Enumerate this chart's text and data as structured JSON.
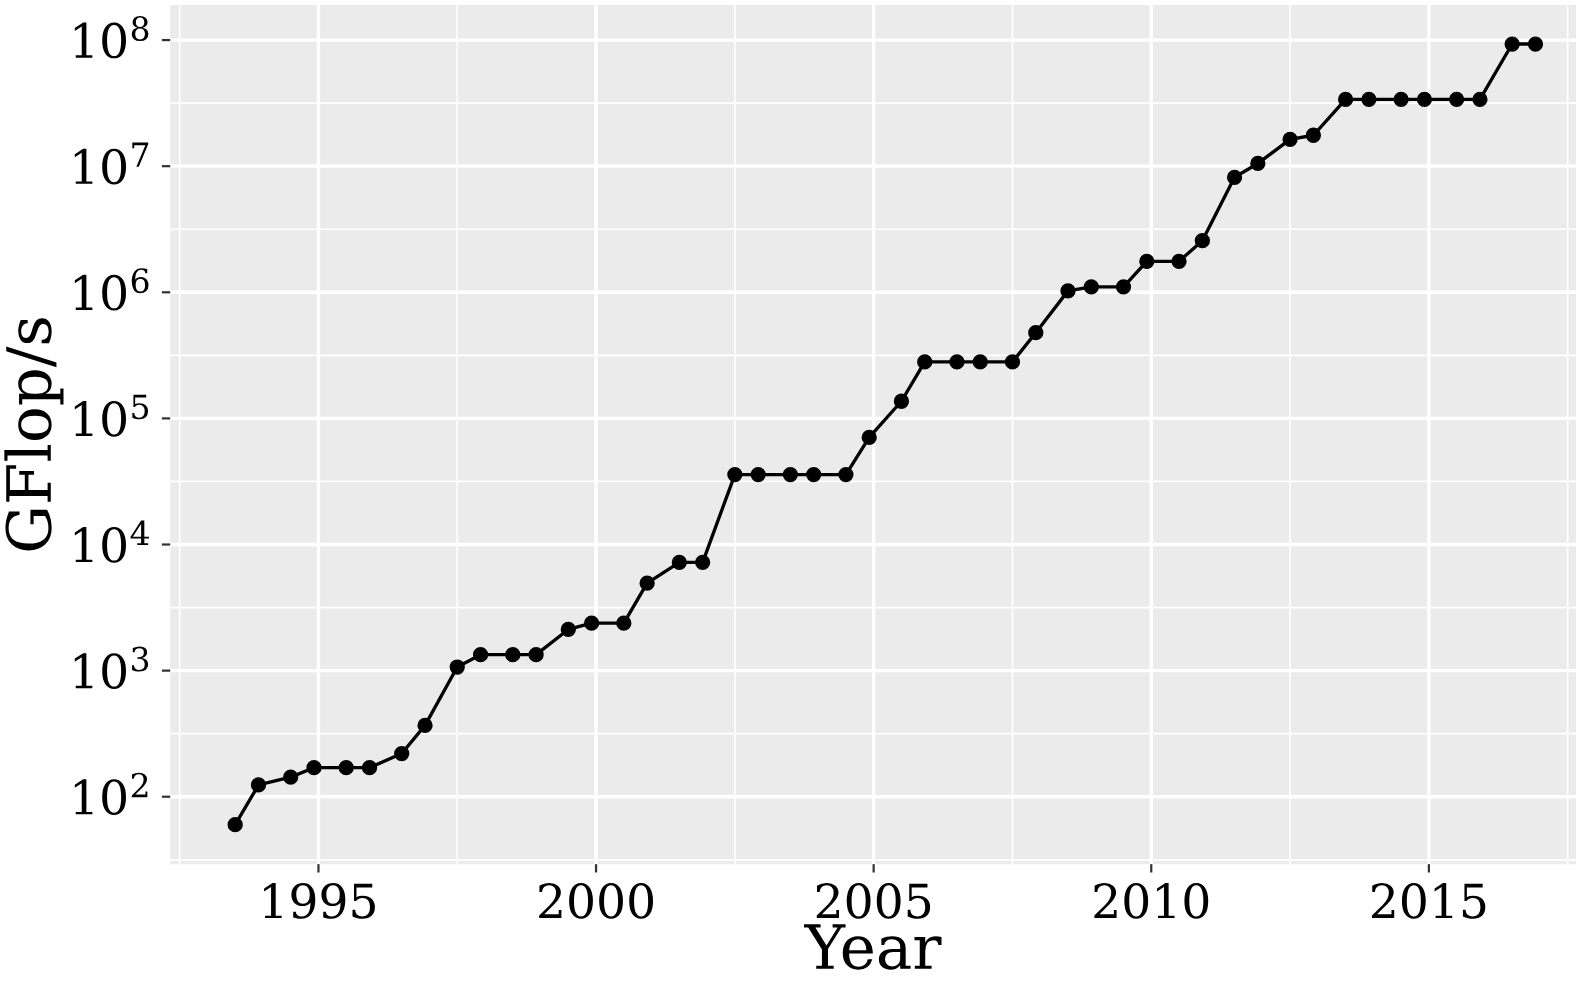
{
  "chart_data": {
    "type": "line",
    "xlabel": "Year",
    "ylabel": "GFlop/s",
    "log": "y",
    "grid": true,
    "marker": "circle",
    "line_style": "solid",
    "x": [
      1993.5,
      1993.92,
      1994.5,
      1994.92,
      1995.5,
      1995.92,
      1996.5,
      1996.92,
      1997.5,
      1997.92,
      1998.5,
      1998.92,
      1999.5,
      1999.92,
      2000.5,
      2000.92,
      2001.5,
      2001.92,
      2002.5,
      2002.92,
      2003.5,
      2003.92,
      2004.5,
      2004.92,
      2005.5,
      2005.92,
      2006.5,
      2006.92,
      2007.5,
      2007.92,
      2008.5,
      2008.92,
      2009.5,
      2009.92,
      2010.5,
      2010.92,
      2011.5,
      2011.92,
      2012.5,
      2012.92,
      2013.5,
      2013.92,
      2014.5,
      2014.92,
      2015.5,
      2015.92,
      2016.5,
      2016.92
    ],
    "series": [
      {
        "color": "#000000",
        "values": [
          60,
          124,
          143,
          170,
          170,
          170,
          220,
          368,
          1068,
          1338,
          1338,
          1338,
          2121,
          2379,
          2379,
          4938,
          7226,
          7226,
          35860,
          35860,
          35860,
          35860,
          35860,
          70720,
          136800,
          280600,
          280600,
          280600,
          280600,
          478200,
          1026000,
          1105000,
          1105000,
          1759000,
          1759000,
          2566000,
          8162000,
          10510000,
          16320000,
          17590000,
          33860000,
          33860000,
          33860000,
          33860000,
          33860000,
          33860000,
          93010000,
          93010000
        ]
      }
    ],
    "xlim": [
      1992.33,
      2017.65
    ],
    "xticks": [
      1995,
      2000,
      2005,
      2010,
      2015
    ],
    "ylim": [
      29.2,
      190000000
    ],
    "yticks": [
      {
        "value": 100,
        "label": "10$^{2}$"
      },
      {
        "value": 1000,
        "label": "10$^{3}$"
      },
      {
        "value": 10000,
        "label": "10$^{4}$"
      },
      {
        "value": 100000,
        "label": "10$^{5}$"
      },
      {
        "value": 1000000,
        "label": "10$^{6}$"
      },
      {
        "value": 10000000,
        "label": "10$^{7}$"
      },
      {
        "value": 100000000,
        "label": "10$^{8}$"
      }
    ]
  }
}
